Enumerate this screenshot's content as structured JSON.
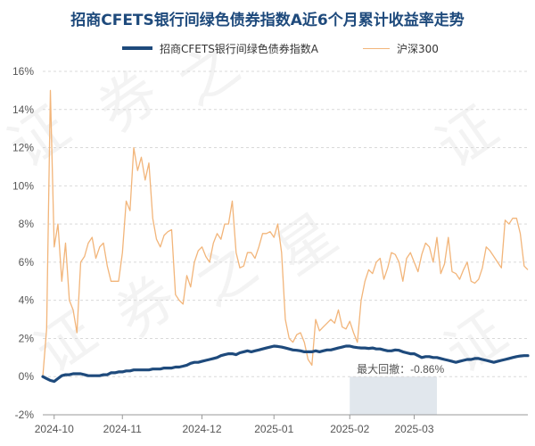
{
  "chart_data": {
    "type": "line",
    "title": "招商CFETS银行间绿色债券指数A近6个月累计收益率走势",
    "xlabel": "",
    "ylabel": "",
    "ylim": [
      -2,
      16
    ],
    "y_ticks": [
      "16%",
      "14%",
      "12%",
      "10%",
      "8%",
      "6%",
      "4%",
      "2%",
      "0%",
      "-2%"
    ],
    "y_tick_values": [
      16,
      14,
      12,
      10,
      8,
      6,
      4,
      2,
      0,
      -2
    ],
    "x_ticks": [
      "2024-10",
      "2024-11",
      "2024-12",
      "2025-01",
      "2025-02",
      "2025-03"
    ],
    "x_tick_index": [
      3,
      21,
      42,
      61,
      81,
      98
    ],
    "n_points": 129,
    "series": [
      {
        "name": "招商CFETS银行间绿色债券指数A",
        "color": "#1e4a7c",
        "values": [
          0,
          -0.1,
          -0.2,
          -0.25,
          -0.1,
          0.05,
          0.1,
          0.1,
          0.15,
          0.15,
          0.15,
          0.1,
          0.05,
          0.05,
          0.05,
          0.05,
          0.1,
          0.1,
          0.2,
          0.2,
          0.25,
          0.25,
          0.3,
          0.3,
          0.35,
          0.35,
          0.35,
          0.35,
          0.35,
          0.4,
          0.4,
          0.4,
          0.45,
          0.45,
          0.45,
          0.5,
          0.5,
          0.55,
          0.6,
          0.7,
          0.75,
          0.75,
          0.8,
          0.85,
          0.9,
          0.95,
          1.0,
          1.1,
          1.15,
          1.2,
          1.2,
          1.15,
          1.25,
          1.3,
          1.35,
          1.3,
          1.35,
          1.4,
          1.45,
          1.5,
          1.55,
          1.6,
          1.58,
          1.55,
          1.5,
          1.45,
          1.4,
          1.38,
          1.35,
          1.3,
          1.3,
          1.3,
          1.35,
          1.3,
          1.35,
          1.4,
          1.4,
          1.45,
          1.5,
          1.55,
          1.6,
          1.6,
          1.55,
          1.52,
          1.5,
          1.5,
          1.48,
          1.5,
          1.45,
          1.45,
          1.4,
          1.35,
          1.35,
          1.4,
          1.38,
          1.3,
          1.25,
          1.2,
          1.2,
          1.1,
          1.0,
          1.05,
          1.05,
          1.0,
          1.0,
          0.95,
          0.9,
          0.85,
          0.8,
          0.75,
          0.8,
          0.85,
          0.9,
          0.9,
          0.95,
          0.95,
          0.9,
          0.85,
          0.8,
          0.75,
          0.8,
          0.85,
          0.9,
          0.95,
          1.0,
          1.05,
          1.08,
          1.1,
          1.1
        ]
      },
      {
        "name": "沪深300",
        "color": "#f2b57a",
        "values": [
          0,
          2.5,
          15,
          6.8,
          8,
          5,
          7,
          4,
          3.5,
          2.3,
          6,
          6.3,
          7,
          7.3,
          6.2,
          6.8,
          7,
          5.8,
          5,
          5,
          5,
          6.5,
          9.2,
          8.7,
          12,
          10.8,
          11.5,
          10.3,
          11.2,
          8.3,
          7.2,
          6.8,
          7.4,
          7.6,
          7.7,
          4.3,
          4,
          3.8,
          5.3,
          4.7,
          6,
          6.6,
          6.8,
          6.3,
          6,
          7,
          7.5,
          7.2,
          8,
          8,
          9.2,
          6.5,
          5.7,
          5.8,
          6.5,
          6.5,
          6.2,
          6.8,
          7.5,
          7.5,
          7.6,
          7.3,
          8,
          6.5,
          3,
          2,
          1.8,
          2.2,
          2.3,
          1.8,
          0.9,
          0.6,
          3,
          2.4,
          2.6,
          2.8,
          3,
          2.8,
          3.5,
          2.6,
          2.5,
          2.9,
          2.3,
          1.8,
          4,
          5,
          5.6,
          5.4,
          6,
          6.2,
          5.1,
          5.7,
          6.5,
          6.4,
          6,
          5,
          6.2,
          6.5,
          6,
          5.5,
          6.4,
          7,
          6.8,
          6,
          7.3,
          5.4,
          5.9,
          7.3,
          5.5,
          5.4,
          5.1,
          5.6,
          6,
          5,
          4.9,
          5.1,
          5.7,
          6.8,
          6.6,
          6.3,
          6,
          5.7,
          8.2,
          8,
          8.3,
          8.3,
          7.5,
          5.8,
          5.6
        ]
      }
    ],
    "annotation": {
      "label": "最大回撤：-0.86%",
      "start_index": 81,
      "end_index": 104
    },
    "legend_position": "top-center",
    "grid": "horizontal-dashed"
  },
  "watermark": {
    "glyphs": [
      "证",
      "券",
      "之",
      "星"
    ]
  }
}
